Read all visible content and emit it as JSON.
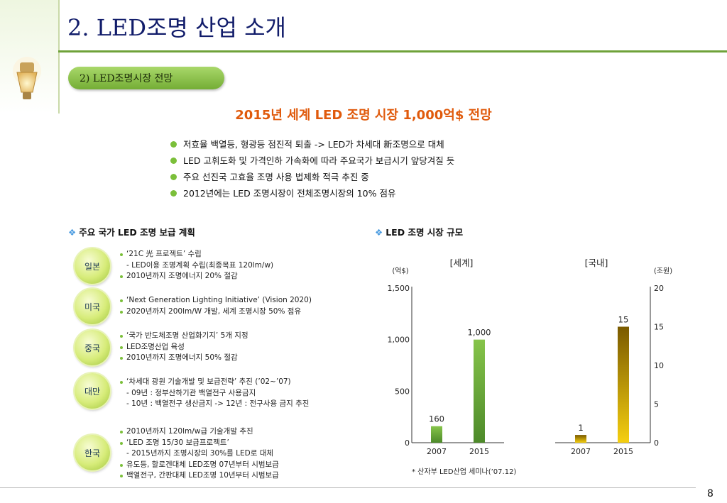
{
  "page": {
    "title": "2. LED조명 산업 소개",
    "section": "2) LED조명시장 전망",
    "headline": "2015년 세계 LED 조명 시장 1,000억$ 전망",
    "page_number": "8"
  },
  "bullets": [
    "저효율 백열등, 형광등 점진적 퇴출 -> LED가 차세대 新조명으로 대체",
    "LED 고휘도화 및 가격인하 가속화에 따라 주요국가 보급시기 앞당겨질 듯",
    "주요 선진국 고효율 조명 사용 법제화 적극 추진 중",
    "2012년에는 LED 조명시장이 전체조명시장의 10% 점유"
  ],
  "left_section": {
    "heading": "주요 국가 LED 조명 보급 계획",
    "countries": [
      {
        "name": "일본",
        "items": [
          {
            "text": "‘21C 光 프로젝트’ 수립",
            "bullet": true
          },
          {
            "text": "- LED이용 조명계획 수립(최종목표 120lm/w)",
            "bullet": false
          },
          {
            "text": "2010년까지 조명에너지 20% 절감",
            "bullet": true
          }
        ]
      },
      {
        "name": "미국",
        "items": [
          {
            "text": "‘Next Generation Lighting Initiative’ (Vision 2020)",
            "bullet": true
          },
          {
            "text": "2020년까지 200lm/W 개발, 세계 조명시장 50% 점유",
            "bullet": true
          }
        ]
      },
      {
        "name": "중국",
        "items": [
          {
            "text": "‘국가 반도체조명 산업화기지’ 5개 지정",
            "bullet": true
          },
          {
            "text": "LED조명산업 육성",
            "bullet": true
          },
          {
            "text": "2010년까지 조명에너지 50% 절감",
            "bullet": true
          }
        ]
      },
      {
        "name": "대만",
        "items": [
          {
            "text": "‘차세대 광원 기술개발 및 보급전략’ 추진 (’02~’07)",
            "bullet": true
          },
          {
            "text": "- 09년 : 정부산하기관 백열전구 사용금지",
            "bullet": false
          },
          {
            "text": "- 10년 : 백열전구 생산금지 -> 12년 : 전구사용 금지 추진",
            "bullet": false
          }
        ]
      },
      {
        "name": "한국",
        "items": [
          {
            "text": "2010년까지 120lm/w급 기술개발 추진",
            "bullet": true
          },
          {
            "text": "‘LED 조명 15/30 보급프로젝트’",
            "bullet": true
          },
          {
            "text": "- 2015년까지 조명시장의 30%를 LED로 대체",
            "bullet": false
          },
          {
            "text": "유도등, 할로겐대체 LED조명 07년부터 시범보급",
            "bullet": true
          },
          {
            "text": "백열전구, 간판대체 LED조명 10년부터 시범보급",
            "bullet": true
          }
        ]
      }
    ]
  },
  "right_section": {
    "heading": "LED 조명 시장 규모",
    "footnote": "* 산자부 LED산업 세미나(’07.12)"
  },
  "colors": {
    "title": "#111c6a",
    "headline": "#e05a0c",
    "world_bar": "#6aa83a",
    "korea_bar": "#d4a800",
    "accent_green": "#7bbf3a"
  },
  "chart_data": [
    {
      "type": "bar",
      "title": "[세계]",
      "categories": [
        "2007",
        "2015"
      ],
      "values": [
        160,
        1000
      ],
      "data_labels": [
        "160",
        "1,000"
      ],
      "ylabel": "(억$)",
      "ylim": [
        0,
        1500
      ],
      "yticks": [
        "0",
        "500",
        "1,000",
        "1,500"
      ],
      "axis_side": "left"
    },
    {
      "type": "bar",
      "title": "[국내]",
      "categories": [
        "2007",
        "2015"
      ],
      "values": [
        1,
        15
      ],
      "data_labels": [
        "1",
        "15"
      ],
      "ylabel": "(조원)",
      "ylim": [
        0,
        20
      ],
      "yticks": [
        "0",
        "5",
        "10",
        "15",
        "20"
      ],
      "axis_side": "right"
    }
  ]
}
